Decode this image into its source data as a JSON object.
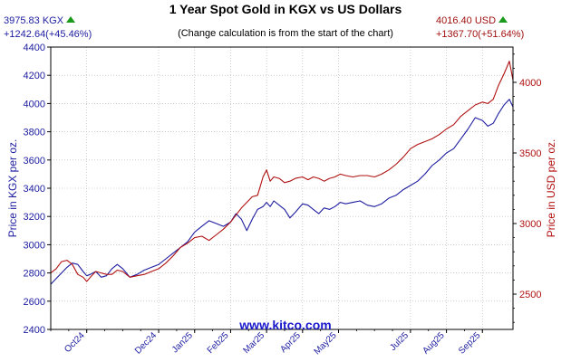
{
  "chart_data": {
    "type": "line",
    "title": "1 Year Spot Gold in KGX vs US Dollars",
    "subtitle": "(Change calculation is from the start of the chart)",
    "watermark": "www.kitco.com",
    "ylabel_left": "Price in KGX per oz.",
    "ylabel_right": "Price in USD per oz.",
    "ylim_left": [
      2400,
      4400
    ],
    "ylim_right": [
      2250,
      4250
    ],
    "yticks_left": [
      "2400",
      "2600",
      "2800",
      "3000",
      "3200",
      "3400",
      "3600",
      "3800",
      "4000",
      "4200",
      "4400"
    ],
    "yticks_right": [
      "2500",
      "3000",
      "3500",
      "4000"
    ],
    "x_tick_labels": [
      "Oct24",
      "Dec24",
      "Jan25",
      "Feb25",
      "Mar25",
      "Apr25",
      "May25",
      "Jul25",
      "Aug25",
      "Sep25"
    ],
    "x_tick_months": [
      1,
      3,
      4,
      5,
      6,
      7,
      8,
      10,
      11,
      12
    ],
    "grid": true,
    "header_left": {
      "value": "3975.83 KGX",
      "change": "+1242.64(+45.46%)",
      "trend": "up"
    },
    "header_right": {
      "value": "4016.40 USD",
      "change": "+1367.70(+51.64%)",
      "trend": "up"
    },
    "colors": {
      "kgx": "#1c1ca0",
      "usd": "#b01010",
      "up": "#1a9a1a",
      "grid": "#b0b0b0"
    },
    "series": [
      {
        "name": "KGX",
        "axis": "left",
        "x": [
          0.0,
          0.15,
          0.3,
          0.45,
          0.6,
          0.75,
          0.9,
          1.0,
          1.1,
          1.25,
          1.4,
          1.55,
          1.7,
          1.85,
          2.0,
          2.2,
          2.4,
          2.6,
          2.8,
          3.0,
          3.2,
          3.4,
          3.6,
          3.8,
          4.0,
          4.2,
          4.4,
          4.6,
          4.8,
          5.0,
          5.15,
          5.3,
          5.45,
          5.6,
          5.75,
          5.9,
          6.0,
          6.1,
          6.2,
          6.35,
          6.5,
          6.65,
          6.8,
          7.0,
          7.15,
          7.3,
          7.45,
          7.6,
          7.75,
          7.9,
          8.05,
          8.2,
          8.4,
          8.6,
          8.8,
          9.0,
          9.2,
          9.4,
          9.6,
          9.8,
          10.0,
          10.2,
          10.4,
          10.6,
          10.8,
          11.0,
          11.2,
          11.4,
          11.6,
          11.8,
          12.0,
          12.15,
          12.3,
          12.45,
          12.6,
          12.75,
          12.85
        ],
        "values": [
          2720,
          2760,
          2800,
          2840,
          2870,
          2860,
          2810,
          2780,
          2790,
          2810,
          2770,
          2780,
          2830,
          2860,
          2830,
          2770,
          2790,
          2820,
          2840,
          2860,
          2900,
          2940,
          2980,
          3020,
          3090,
          3130,
          3170,
          3150,
          3130,
          3160,
          3220,
          3180,
          3100,
          3180,
          3250,
          3270,
          3300,
          3270,
          3310,
          3280,
          3250,
          3190,
          3230,
          3290,
          3280,
          3250,
          3220,
          3260,
          3250,
          3270,
          3300,
          3290,
          3300,
          3310,
          3280,
          3270,
          3290,
          3330,
          3350,
          3390,
          3420,
          3450,
          3500,
          3560,
          3600,
          3650,
          3680,
          3750,
          3820,
          3900,
          3880,
          3840,
          3860,
          3930,
          3990,
          4030,
          3976
        ]
      },
      {
        "name": "USD",
        "axis": "right",
        "x": [
          0.0,
          0.15,
          0.3,
          0.45,
          0.6,
          0.75,
          0.9,
          1.0,
          1.1,
          1.25,
          1.4,
          1.55,
          1.7,
          1.85,
          2.0,
          2.2,
          2.4,
          2.6,
          2.8,
          3.0,
          3.2,
          3.4,
          3.6,
          3.8,
          4.0,
          4.2,
          4.4,
          4.6,
          4.8,
          5.0,
          5.15,
          5.3,
          5.45,
          5.6,
          5.75,
          5.9,
          6.0,
          6.1,
          6.2,
          6.35,
          6.5,
          6.65,
          6.8,
          7.0,
          7.15,
          7.3,
          7.45,
          7.6,
          7.75,
          7.9,
          8.05,
          8.2,
          8.4,
          8.6,
          8.8,
          9.0,
          9.2,
          9.4,
          9.6,
          9.8,
          10.0,
          10.2,
          10.4,
          10.6,
          10.8,
          11.0,
          11.2,
          11.4,
          11.6,
          11.8,
          12.0,
          12.15,
          12.3,
          12.45,
          12.6,
          12.75,
          12.85
        ],
        "values": [
          2650,
          2680,
          2730,
          2740,
          2710,
          2640,
          2620,
          2590,
          2620,
          2660,
          2650,
          2640,
          2640,
          2670,
          2660,
          2620,
          2630,
          2640,
          2660,
          2680,
          2720,
          2770,
          2830,
          2860,
          2900,
          2910,
          2880,
          2920,
          2960,
          3010,
          3060,
          3110,
          3150,
          3190,
          3200,
          3330,
          3380,
          3300,
          3330,
          3320,
          3290,
          3300,
          3320,
          3330,
          3310,
          3330,
          3320,
          3300,
          3320,
          3330,
          3350,
          3340,
          3330,
          3340,
          3340,
          3330,
          3350,
          3380,
          3420,
          3470,
          3530,
          3560,
          3580,
          3600,
          3630,
          3670,
          3700,
          3760,
          3800,
          3840,
          3860,
          3850,
          3880,
          3980,
          4060,
          4150,
          4016
        ]
      }
    ]
  }
}
